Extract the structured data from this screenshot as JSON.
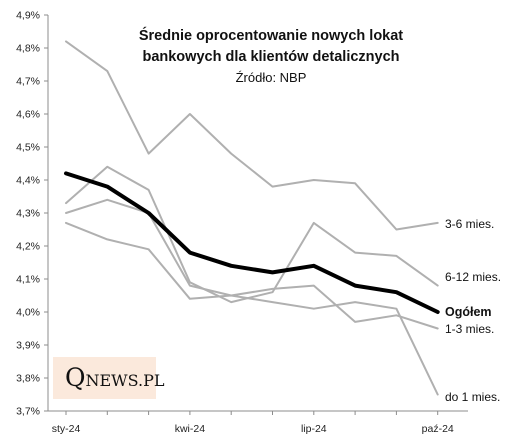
{
  "chart_data": {
    "type": "line",
    "title_lines": [
      "Średnie oprocentowanie nowych lokat",
      "bankowych dla klientów detalicznych"
    ],
    "subtitle": "Źródło: NBP",
    "x_tick_labels": [
      "sty-24",
      "kwi-24",
      "lip-24",
      "paź-24"
    ],
    "x_tick_indices": [
      0,
      3,
      6,
      9
    ],
    "ylim": [
      3.7,
      4.9
    ],
    "y_ticks": [
      3.7,
      3.8,
      3.9,
      4.0,
      4.1,
      4.2,
      4.3,
      4.4,
      4.5,
      4.6,
      4.7,
      4.8,
      4.9
    ],
    "y_tick_labels": [
      "3,7%",
      "3,8%",
      "3,9%",
      "4,0%",
      "4,1%",
      "4,2%",
      "4,3%",
      "4,4%",
      "4,5%",
      "4,6%",
      "4,7%",
      "4,8%",
      "4,9%"
    ],
    "colors": {
      "gray": "#b0b0b0",
      "main": "#000000",
      "axis": "#8c8c8c"
    },
    "series": [
      {
        "name": "3-6 mies.",
        "values": [
          4.82,
          4.73,
          4.48,
          4.6,
          4.48,
          4.38,
          4.4,
          4.39,
          4.25,
          4.27
        ],
        "emphasis": false
      },
      {
        "name": "6-12 mies.",
        "values": [
          4.33,
          4.44,
          4.37,
          4.09,
          4.03,
          4.06,
          4.27,
          4.18,
          4.17,
          4.08
        ],
        "emphasis": false
      },
      {
        "name": "Ogółem",
        "values": [
          4.42,
          4.38,
          4.3,
          4.18,
          4.14,
          4.12,
          4.14,
          4.08,
          4.06,
          4.0
        ],
        "emphasis": true
      },
      {
        "name": "1-3 mies.",
        "values": [
          4.3,
          4.34,
          4.3,
          4.08,
          4.05,
          4.07,
          4.08,
          3.97,
          3.99,
          3.95
        ],
        "emphasis": false
      },
      {
        "name": "do 1 mies.",
        "values": [
          4.27,
          4.22,
          4.19,
          4.04,
          4.05,
          4.03,
          4.01,
          4.03,
          4.01,
          3.75
        ],
        "emphasis": false
      }
    ]
  },
  "logo": {
    "q": "Q",
    "rest": "NEWS.PL"
  }
}
